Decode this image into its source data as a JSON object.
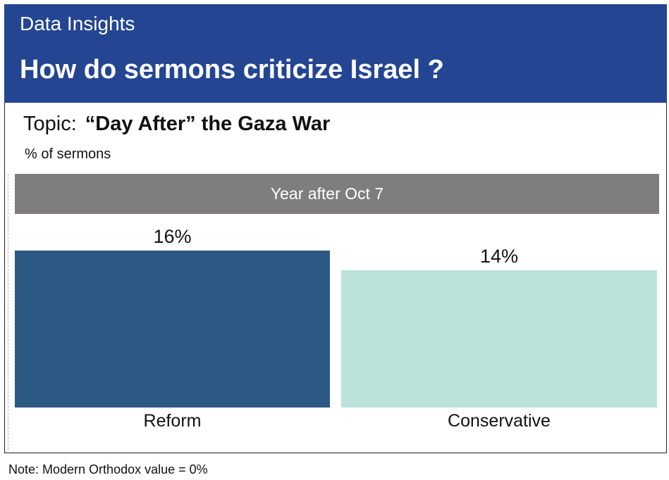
{
  "header": {
    "kicker": "Data Insights",
    "title": "How do sermons criticize Israel ?"
  },
  "topic": {
    "label": "Topic:",
    "value": "“Day After” the Gaza War"
  },
  "unit_label": "% of sermons",
  "note": "Note: Modern Orthodox value = 0%",
  "colors": {
    "header_bg": "#244592",
    "facet_bg": "#7f7e7c",
    "reform": "#2d5985",
    "conservative": "#bbe3d9"
  },
  "chart_data": {
    "type": "bar",
    "facet": "Year after Oct 7",
    "categories": [
      "Reform",
      "Conservative"
    ],
    "values": [
      16,
      14
    ],
    "value_labels": [
      "16%",
      "14%"
    ],
    "colors": [
      "#2d5985",
      "#bbe3d9"
    ],
    "unit": "%",
    "title": "How do sermons criticize Israel ?",
    "ylabel": "% of sermons",
    "ylim": [
      0,
      16
    ],
    "grid": false,
    "legend": "none"
  }
}
